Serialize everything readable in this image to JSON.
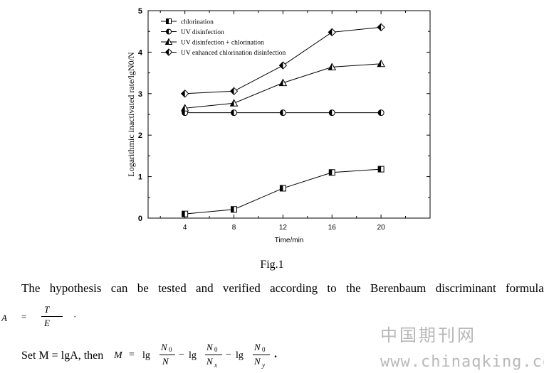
{
  "chart_data": {
    "type": "line",
    "x": [
      4,
      8,
      12,
      16,
      20
    ],
    "xlabel": "Time/min",
    "ylabel": "Logarithmic inactivated rate/lgN0/N",
    "xlim": [
      1,
      24
    ],
    "ylim": [
      0,
      5
    ],
    "x_ticks": [
      "4",
      "8",
      "12",
      "16",
      "20"
    ],
    "y_ticks": [
      "0",
      "1",
      "2",
      "3",
      "4",
      "5"
    ],
    "legend_position": "top-left",
    "grid": false,
    "series": [
      {
        "name": "chlorination",
        "marker": "half-filled-square",
        "values": [
          0.1,
          0.21,
          0.72,
          1.1,
          1.18
        ]
      },
      {
        "name": "UV disinfection",
        "marker": "half-filled-circle",
        "values": [
          2.54,
          2.54,
          2.54,
          2.54,
          2.54
        ]
      },
      {
        "name": "UV disinfection + chlorination",
        "marker": "half-filled-triangle",
        "values": [
          2.65,
          2.77,
          3.26,
          3.64,
          3.72
        ]
      },
      {
        "name": "UV enhanced chlorination disinfection",
        "marker": "half-filled-diamond",
        "values": [
          3.0,
          3.06,
          3.68,
          4.48,
          4.6
        ]
      }
    ]
  },
  "caption": "Fig.1",
  "paragraph": {
    "words": [
      "The",
      "hypothesis",
      "can",
      "be",
      "tested",
      "and",
      "verified",
      "according",
      "to",
      "the",
      "Berenbaum",
      "discriminant",
      "formula"
    ]
  },
  "formula_a": {
    "lhs": "A",
    "eq": "=",
    "num": "T",
    "den": "E",
    "dot": "·"
  },
  "formula_m": {
    "prefix": "Set M = lgA, then",
    "lhs": "M",
    "eq": "=",
    "lg": "lg",
    "minus": "−",
    "n0": "N",
    "sub0": "0",
    "n": "N",
    "sub_x": "x",
    "sub_y": "y",
    "end": "."
  },
  "watermark": {
    "cn": "中国期刊网",
    "url": "www.chinaqking.com"
  }
}
